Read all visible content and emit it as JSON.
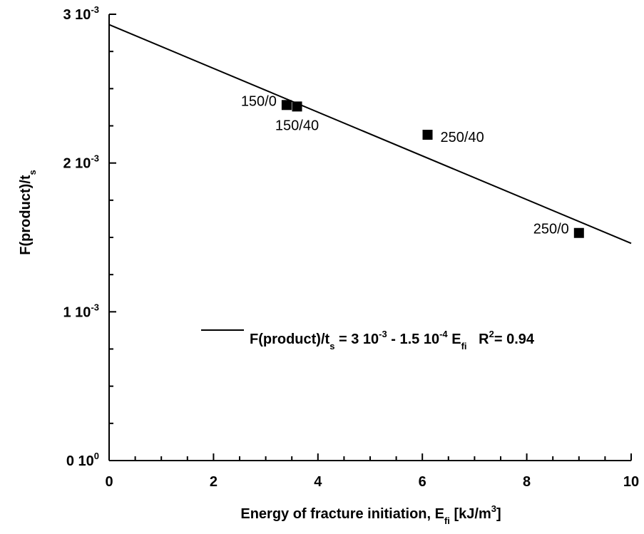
{
  "chart_data": {
    "type": "scatter",
    "xlabel": "Energy of fracture initiation, E",
    "xlabel_sub": "fi",
    "xlabel_tail": " [kJ/m",
    "xlabel_sup": "3",
    "xlabel_end": "]",
    "ylabel": "F(product)/t",
    "ylabel_sub": "s",
    "xlim": [
      0,
      10
    ],
    "ylim": [
      0,
      0.003
    ],
    "x_ticks": [
      {
        "value": 0,
        "label": "0"
      },
      {
        "value": 2,
        "label": "2"
      },
      {
        "value": 4,
        "label": "4"
      },
      {
        "value": 6,
        "label": "6"
      },
      {
        "value": 8,
        "label": "8"
      },
      {
        "value": 10,
        "label": "10"
      }
    ],
    "y_ticks": [
      {
        "value": 0,
        "mantissa": "0 10",
        "exp": "0"
      },
      {
        "value": 0.001,
        "mantissa": "1 10",
        "exp": "-3"
      },
      {
        "value": 0.002,
        "mantissa": "2 10",
        "exp": "-3"
      },
      {
        "value": 0.003,
        "mantissa": "3 10",
        "exp": "-3"
      }
    ],
    "points": [
      {
        "x": 3.4,
        "y": 0.00239,
        "label": "150/0",
        "label_side": "left"
      },
      {
        "x": 3.6,
        "y": 0.00238,
        "label": "150/40",
        "label_side": "below"
      },
      {
        "x": 6.1,
        "y": 0.00219,
        "label": "250/40",
        "label_side": "right"
      },
      {
        "x": 9.0,
        "y": 0.00153,
        "label": "250/0",
        "label_side": "left"
      }
    ],
    "fit_line": {
      "intercept": 0.00293,
      "slope": -0.000147,
      "x_range": [
        0,
        10
      ]
    },
    "legend": {
      "p1": "F(product)/t",
      "p1_sub": "s",
      "p2": " = 3 10",
      "p2_sup": "-3",
      "p3": " - 1.5 10",
      "p3_sup": "-4",
      "p4": " E",
      "p4_sub": "fi",
      "p5": "   R",
      "p5_sup": "2",
      "p6": "= 0.94"
    }
  }
}
